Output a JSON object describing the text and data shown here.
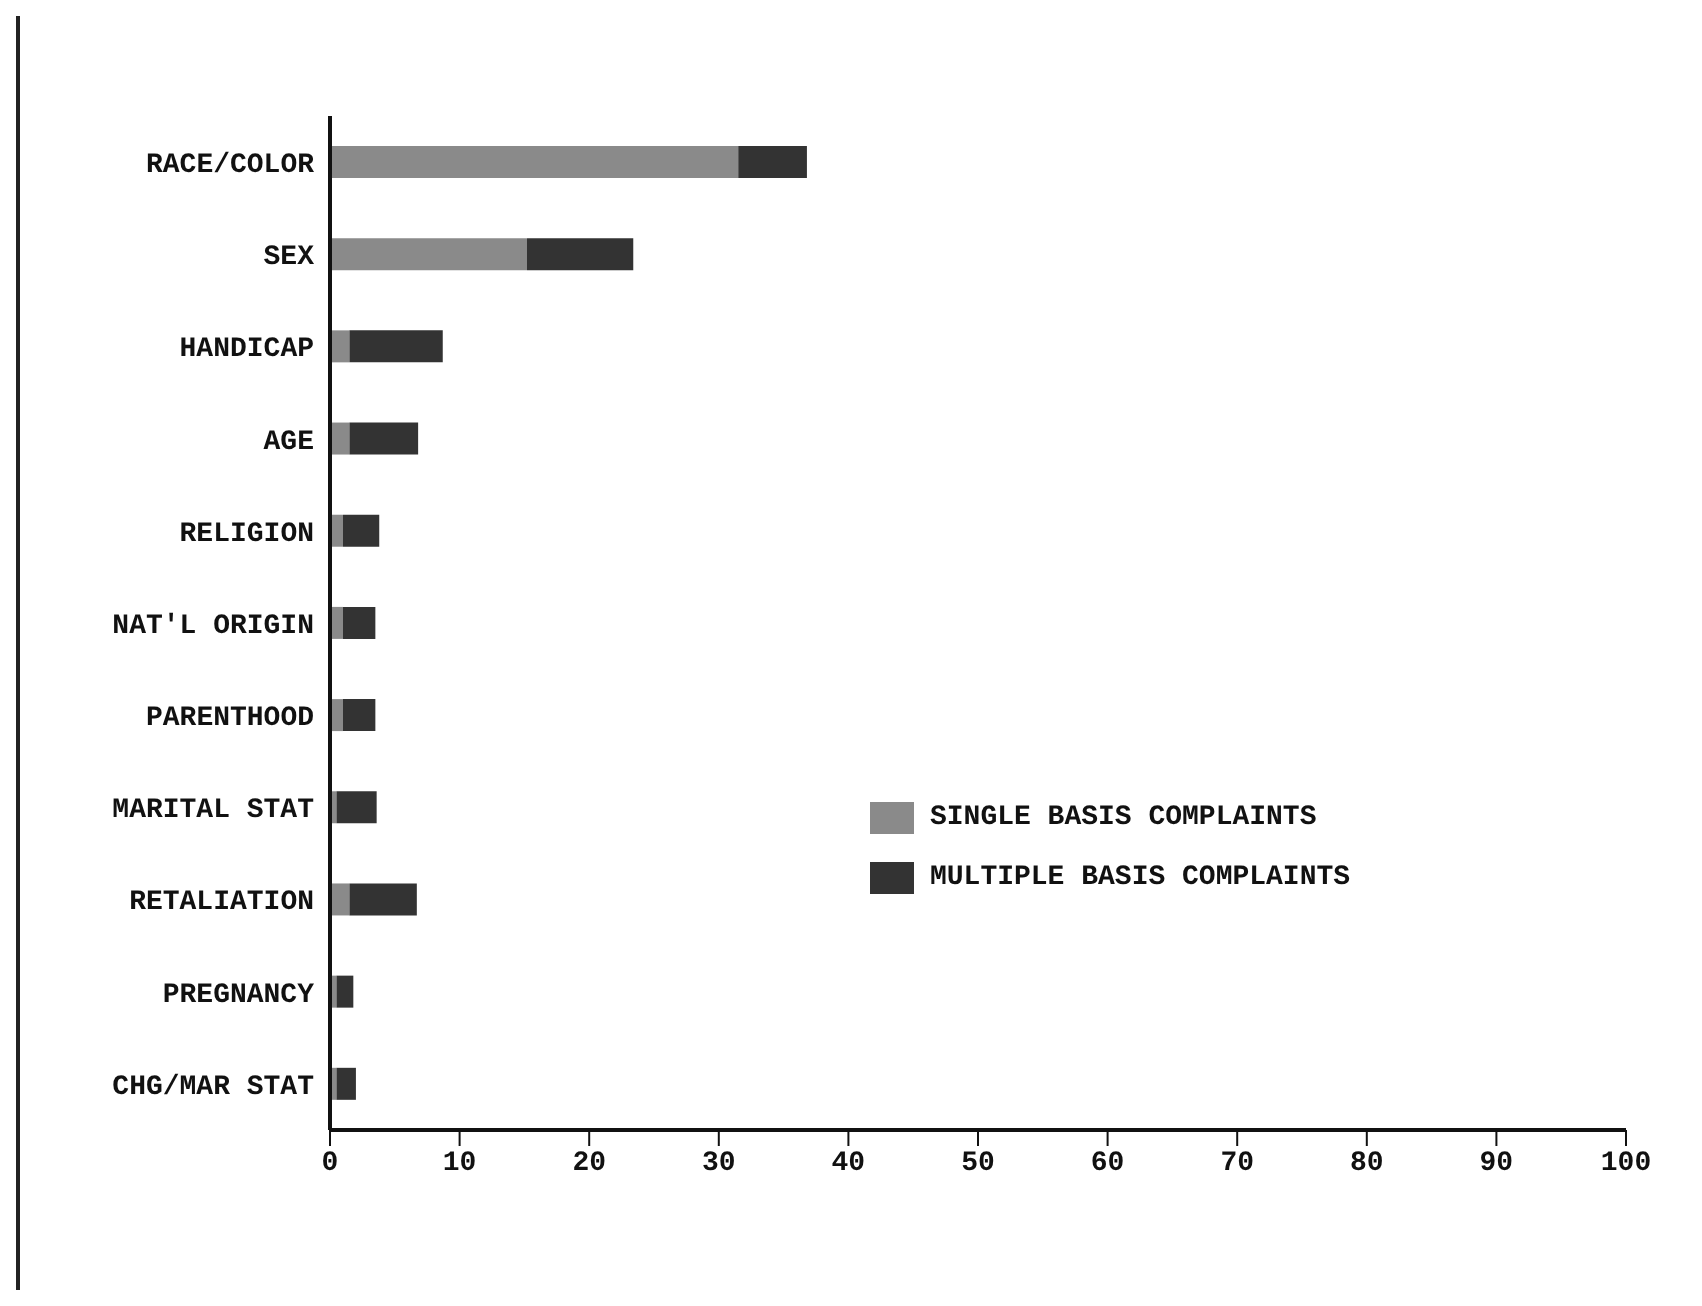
{
  "chart_data": {
    "type": "bar",
    "orientation": "horizontal",
    "stacked": true,
    "categories": [
      "RACE/COLOR",
      "SEX",
      "HANDICAP",
      "AGE",
      "RELIGION",
      "NAT'L ORIGIN",
      "PARENTHOOD",
      "MARITAL STAT",
      "RETALIATION",
      "PREGNANCY",
      "CHG/MAR STAT"
    ],
    "series": [
      {
        "name": "SINGLE BASIS COMPLAINTS",
        "color": "#8a8a8a",
        "values": [
          31.5,
          15.2,
          1.5,
          1.5,
          1,
          1,
          1,
          0.5,
          1.5,
          0.5,
          0.5
        ]
      },
      {
        "name": "MULTIPLE BASIS COMPLAINTS",
        "color": "#333333",
        "values": [
          5.3,
          8.2,
          7.2,
          5.3,
          2.8,
          2.5,
          2.5,
          3.1,
          5.2,
          1.3,
          1.5
        ]
      }
    ],
    "xlim": [
      0,
      100
    ],
    "xticks": [
      0,
      10,
      20,
      30,
      40,
      50,
      60,
      70,
      80,
      90,
      100
    ],
    "legend": "right"
  }
}
